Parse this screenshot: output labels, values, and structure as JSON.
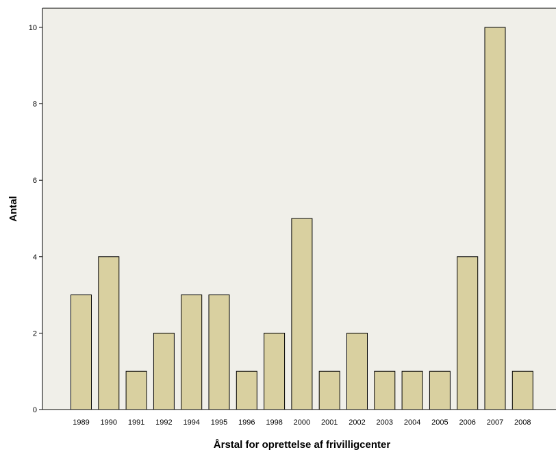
{
  "chart_data": {
    "type": "bar",
    "xlabel": "Årstal for oprettelse af frivilligcenter",
    "ylabel": "Antal",
    "categories": [
      "1989",
      "1990",
      "1991",
      "1992",
      "1994",
      "1995",
      "1996",
      "1998",
      "2000",
      "2001",
      "2002",
      "2003",
      "2004",
      "2005",
      "2006",
      "2007",
      "2008"
    ],
    "values": [
      3,
      4,
      1,
      2,
      3,
      3,
      1,
      2,
      5,
      1,
      2,
      1,
      1,
      1,
      4,
      10,
      1
    ],
    "ylim": [
      0,
      10.5
    ],
    "yticks": [
      "0",
      "2",
      "4",
      "6",
      "8",
      "10"
    ],
    "grid": false,
    "legend": "none"
  },
  "colors": {
    "plot_background": "#f0efe9",
    "bar_fill": "#d9d0a0",
    "bar_stroke": "#000000",
    "axis": "#000000"
  }
}
